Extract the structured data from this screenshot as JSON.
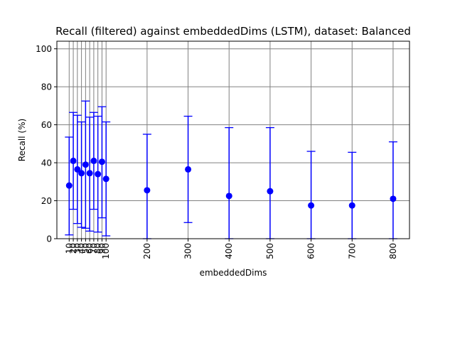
{
  "chart_data": {
    "type": "scatter",
    "title": "Recall (filtered) against embeddedDims (LSTM), dataset: Balanced",
    "xlabel": "embeddedDims",
    "ylabel": "Recall (%)",
    "xlim": [
      -20,
      840
    ],
    "ylim": [
      0,
      104
    ],
    "grid": true,
    "x_ticks": [
      10,
      20,
      30,
      40,
      50,
      60,
      70,
      80,
      90,
      100,
      200,
      300,
      400,
      500,
      600,
      700,
      800
    ],
    "x_tick_labels": [
      "10",
      "20",
      "30",
      "40",
      "50",
      "60",
      "70",
      "80",
      "90",
      "100",
      "200",
      "300",
      "400",
      "500",
      "600",
      "700",
      "800"
    ],
    "y_ticks": [
      0,
      20,
      40,
      60,
      80,
      100
    ],
    "y_tick_labels": [
      "0",
      "20",
      "40",
      "60",
      "80",
      "100"
    ],
    "series": [
      {
        "color": "#0000ff",
        "marker": "circle",
        "points": [
          {
            "x": 10,
            "y": 28.0,
            "err_low": 2.0,
            "err_high": 53.5
          },
          {
            "x": 20,
            "y": 41.0,
            "err_low": 15.5,
            "err_high": 66.5
          },
          {
            "x": 30,
            "y": 36.5,
            "err_low": 8.0,
            "err_high": 65.0
          },
          {
            "x": 40,
            "y": 34.5,
            "err_low": 6.0,
            "err_high": 61.5
          },
          {
            "x": 50,
            "y": 39.0,
            "err_low": 5.5,
            "err_high": 72.5
          },
          {
            "x": 60,
            "y": 34.5,
            "err_low": 4.0,
            "err_high": 64.0
          },
          {
            "x": 70,
            "y": 41.0,
            "err_low": 15.5,
            "err_high": 66.5
          },
          {
            "x": 80,
            "y": 34.0,
            "err_low": 3.5,
            "err_high": 64.5
          },
          {
            "x": 90,
            "y": 40.5,
            "err_low": 11.0,
            "err_high": 69.5
          },
          {
            "x": 100,
            "y": 31.5,
            "err_low": 1.5,
            "err_high": 61.5
          },
          {
            "x": 200,
            "y": 25.5,
            "err_low": 0.0,
            "err_high": 55.0
          },
          {
            "x": 300,
            "y": 36.5,
            "err_low": 8.5,
            "err_high": 64.5
          },
          {
            "x": 400,
            "y": 22.5,
            "err_low": 0.0,
            "err_high": 58.5
          },
          {
            "x": 500,
            "y": 25.0,
            "err_low": 0.0,
            "err_high": 58.5
          },
          {
            "x": 600,
            "y": 17.5,
            "err_low": 0.0,
            "err_high": 46.0
          },
          {
            "x": 700,
            "y": 17.5,
            "err_low": 0.0,
            "err_high": 45.5
          },
          {
            "x": 800,
            "y": 21.0,
            "err_low": 0.0,
            "err_high": 51.0
          }
        ]
      }
    ],
    "colors": {
      "grid": "#808080",
      "axes": "#000000"
    }
  }
}
